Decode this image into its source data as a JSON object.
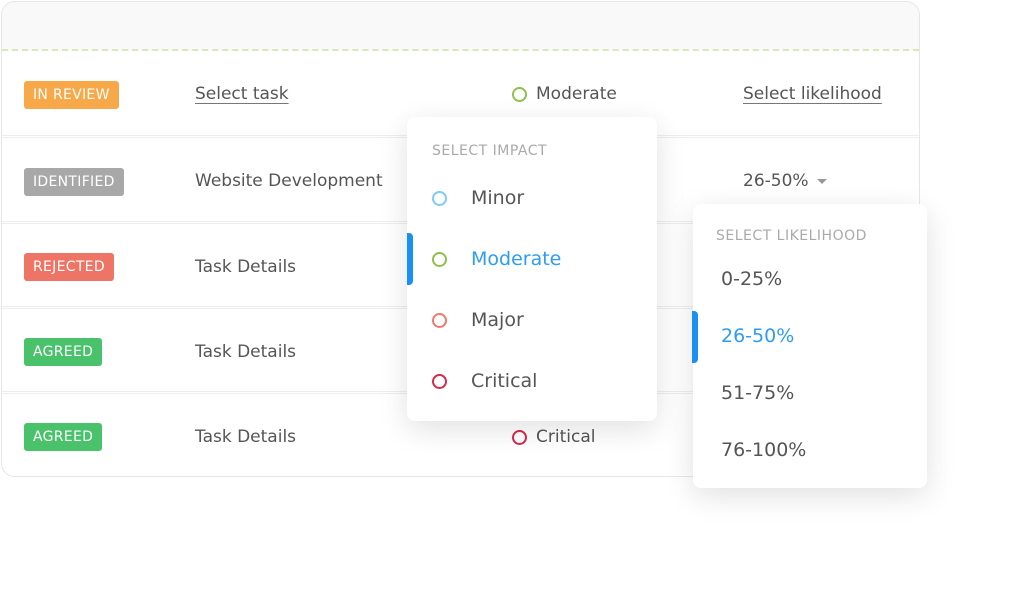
{
  "colors": {
    "accent": "#2d9cf4",
    "in_review": "#f7a94a",
    "identified": "#a8a8a8",
    "rejected": "#ee7465",
    "agreed": "#49c26b",
    "minor": "#7ccbf5",
    "moderate": "#8ec04a",
    "major": "#f1786a",
    "critical": "#d9284a"
  },
  "rows": [
    {
      "status": "IN REVIEW",
      "task": "Select task",
      "impact": "Moderate",
      "likelihood": "Select likelihood"
    },
    {
      "status": "IDENTIFIED",
      "task": "Website Development",
      "likelihood": "26-50%"
    },
    {
      "status": "REJECTED",
      "task": "Task Details"
    },
    {
      "status": "AGREED",
      "task": "Task Details"
    },
    {
      "status": "AGREED",
      "task": "Task Details",
      "impact": "Critical"
    }
  ],
  "impact_dropdown": {
    "title": "SELECT IMPACT",
    "options": [
      "Minor",
      "Moderate",
      "Major",
      "Critical"
    ],
    "selected": "Moderate"
  },
  "likelihood_dropdown": {
    "title": "SELECT LIKELIHOOD",
    "options": [
      "0-25%",
      "26-50%",
      "51-75%",
      "76-100%"
    ],
    "selected": "26-50%"
  }
}
